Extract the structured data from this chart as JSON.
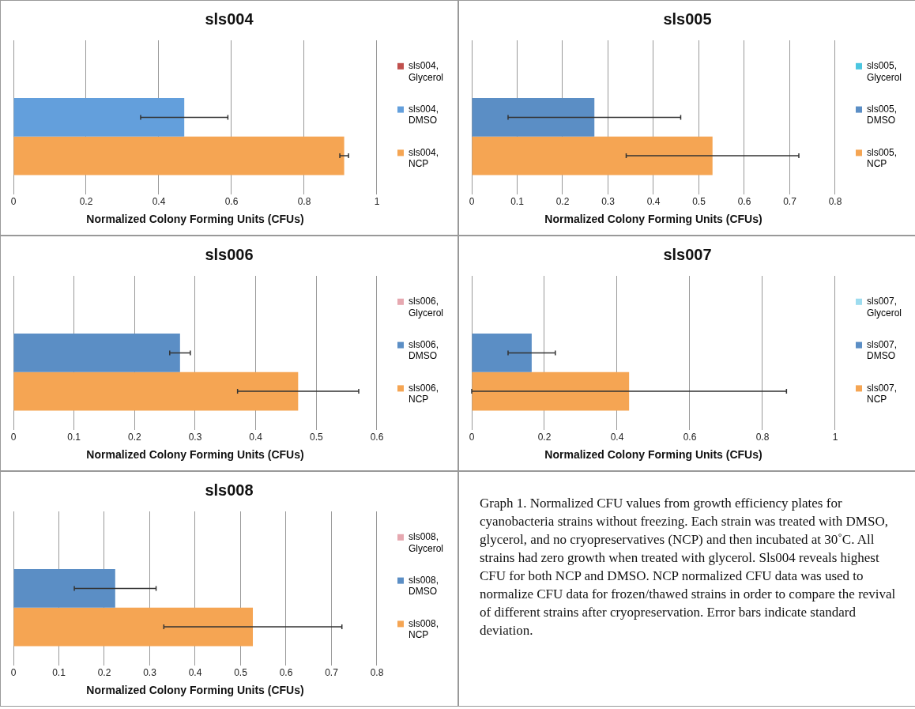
{
  "chart_data": [
    {
      "type": "bar",
      "orientation": "horizontal",
      "title": "sls004",
      "xlabel": "Normalized Colony Forming Units (CFUs)",
      "categories": [
        null
      ],
      "xlim": [
        0,
        1
      ],
      "xticks": [
        0,
        0.2,
        0.4,
        0.6,
        0.8,
        1
      ],
      "grid": "x",
      "legend": "right",
      "series": [
        {
          "name": "sls004, Glycerol",
          "color": "#c0504d",
          "values": [
            0
          ]
        },
        {
          "name": "sls004, DMSO",
          "color": "#639fdc",
          "values": [
            0.47
          ],
          "errors": [
            0.12
          ]
        },
        {
          "name": "sls004, NCP",
          "color": "#f5a553",
          "values": [
            0.91
          ],
          "errors": [
            0.012
          ]
        }
      ]
    },
    {
      "type": "bar",
      "orientation": "horizontal",
      "title": "sls005",
      "xlabel": "Normalized Colony Forming Units (CFUs)",
      "categories": [
        null
      ],
      "xlim": [
        0,
        0.8
      ],
      "xticks": [
        0,
        0.1,
        0.2,
        0.3,
        0.4,
        0.5,
        0.6,
        0.7,
        0.8
      ],
      "grid": "x",
      "legend": "right",
      "series": [
        {
          "name": "sls005, Glycerol",
          "color": "#4bc6e0",
          "values": [
            0
          ]
        },
        {
          "name": "sls005, DMSO",
          "color": "#5b8ec5",
          "values": [
            0.27
          ],
          "errors": [
            0.19
          ]
        },
        {
          "name": "sls005, NCP",
          "color": "#f5a553",
          "values": [
            0.53
          ],
          "errors": [
            0.19
          ]
        }
      ]
    },
    {
      "type": "bar",
      "orientation": "horizontal",
      "title": "sls006",
      "xlabel": "Normalized Colony Forming Units (CFUs)",
      "categories": [
        null
      ],
      "xlim": [
        0,
        0.6
      ],
      "xticks": [
        0,
        0.1,
        0.2,
        0.3,
        0.4,
        0.5,
        0.6
      ],
      "grid": "x",
      "legend": "right",
      "series": [
        {
          "name": "sls006, Glycerol",
          "color": "#e6a8b0",
          "values": [
            0
          ]
        },
        {
          "name": "sls006, DMSO",
          "color": "#5b8ec5",
          "values": [
            0.275
          ],
          "errors": [
            0.017
          ]
        },
        {
          "name": "sls006, NCP",
          "color": "#f5a553",
          "values": [
            0.47
          ],
          "errors": [
            0.1
          ]
        }
      ]
    },
    {
      "type": "bar",
      "orientation": "horizontal",
      "title": "sls007",
      "xlabel": "Normalized Colony Forming Units (CFUs)",
      "categories": [
        null
      ],
      "xlim": [
        0,
        1
      ],
      "xticks": [
        0,
        0.2,
        0.4,
        0.6,
        0.8,
        1
      ],
      "grid": "x",
      "legend": "right",
      "series": [
        {
          "name": "sls007, Glycerol",
          "color": "#9ddcef",
          "values": [
            0
          ]
        },
        {
          "name": "sls007, DMSO",
          "color": "#5b8ec5",
          "values": [
            0.165
          ],
          "errors": [
            0.065
          ]
        },
        {
          "name": "sls007, NCP",
          "color": "#f5a553",
          "values": [
            0.433
          ],
          "errors": [
            0.433
          ]
        }
      ]
    },
    {
      "type": "bar",
      "orientation": "horizontal",
      "title": "sls008",
      "xlabel": "Normalized Colony Forming Units (CFUs)",
      "categories": [
        null
      ],
      "xlim": [
        0,
        0.8
      ],
      "xticks": [
        0,
        0.1,
        0.2,
        0.3,
        0.4,
        0.5,
        0.6,
        0.7,
        0.8
      ],
      "grid": "x",
      "legend": "right",
      "series": [
        {
          "name": "sls008, Glycerol",
          "color": "#e6a8b0",
          "values": [
            0
          ]
        },
        {
          "name": "sls008, DMSO",
          "color": "#5b8ec5",
          "values": [
            0.224
          ],
          "errors": [
            0.09
          ]
        },
        {
          "name": "sls008, NCP",
          "color": "#f5a553",
          "values": [
            0.527
          ],
          "errors": [
            0.196
          ]
        }
      ]
    },
    {
      "type": "other",
      "annotations": [
        "Graph 1. Normalized CFU values from growth efficiency plates for cyanobacteria strains without freezing. Each strain was treated with DMSO, glycerol, and no cryopreservatives (NCP) and then incubated at 30˚C. All strains had zero growth when treated with glycerol. Sls004 reveals highest CFU for both NCP and DMSO. NCP normalized CFU data was used to normalize CFU data for frozen/thawed strains in order to compare the revival of different strains after cryopreservation. Error bars indicate standard deviation."
      ]
    }
  ]
}
